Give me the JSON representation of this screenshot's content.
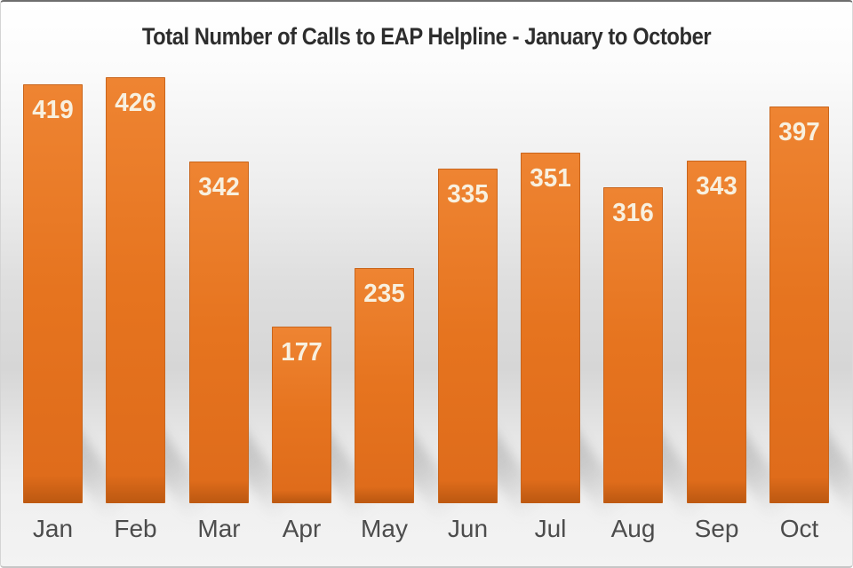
{
  "title": "Total Number of Calls to EAP Helpline - January to October",
  "chart_data": {
    "type": "bar",
    "title": "Total Number of Calls to EAP Helpline - January to October",
    "categories": [
      "Jan",
      "Feb",
      "Mar",
      "Apr",
      "May",
      "Jun",
      "Jul",
      "Aug",
      "Sep",
      "Oct"
    ],
    "values": [
      419,
      426,
      342,
      177,
      235,
      335,
      351,
      316,
      343,
      397
    ],
    "xlabel": "",
    "ylabel": "",
    "ylim": [
      0,
      426
    ],
    "grid": false,
    "legend": false,
    "data_labels_position": "inside-top",
    "bar_style": "flat-orange-with-perspective-shadow"
  },
  "colors": {
    "bar-top": "#ee8432",
    "bar-mid": "#e6741f",
    "bar-bottom": "#df6c1b",
    "bar-edge": "#c9651c",
    "bar-base-edge": "#bf5a12",
    "value-text": "#f8f0df",
    "axis-text": "#4c4c4c",
    "title-text": "#2d2d2d",
    "shadow": "#8a8a8a"
  }
}
